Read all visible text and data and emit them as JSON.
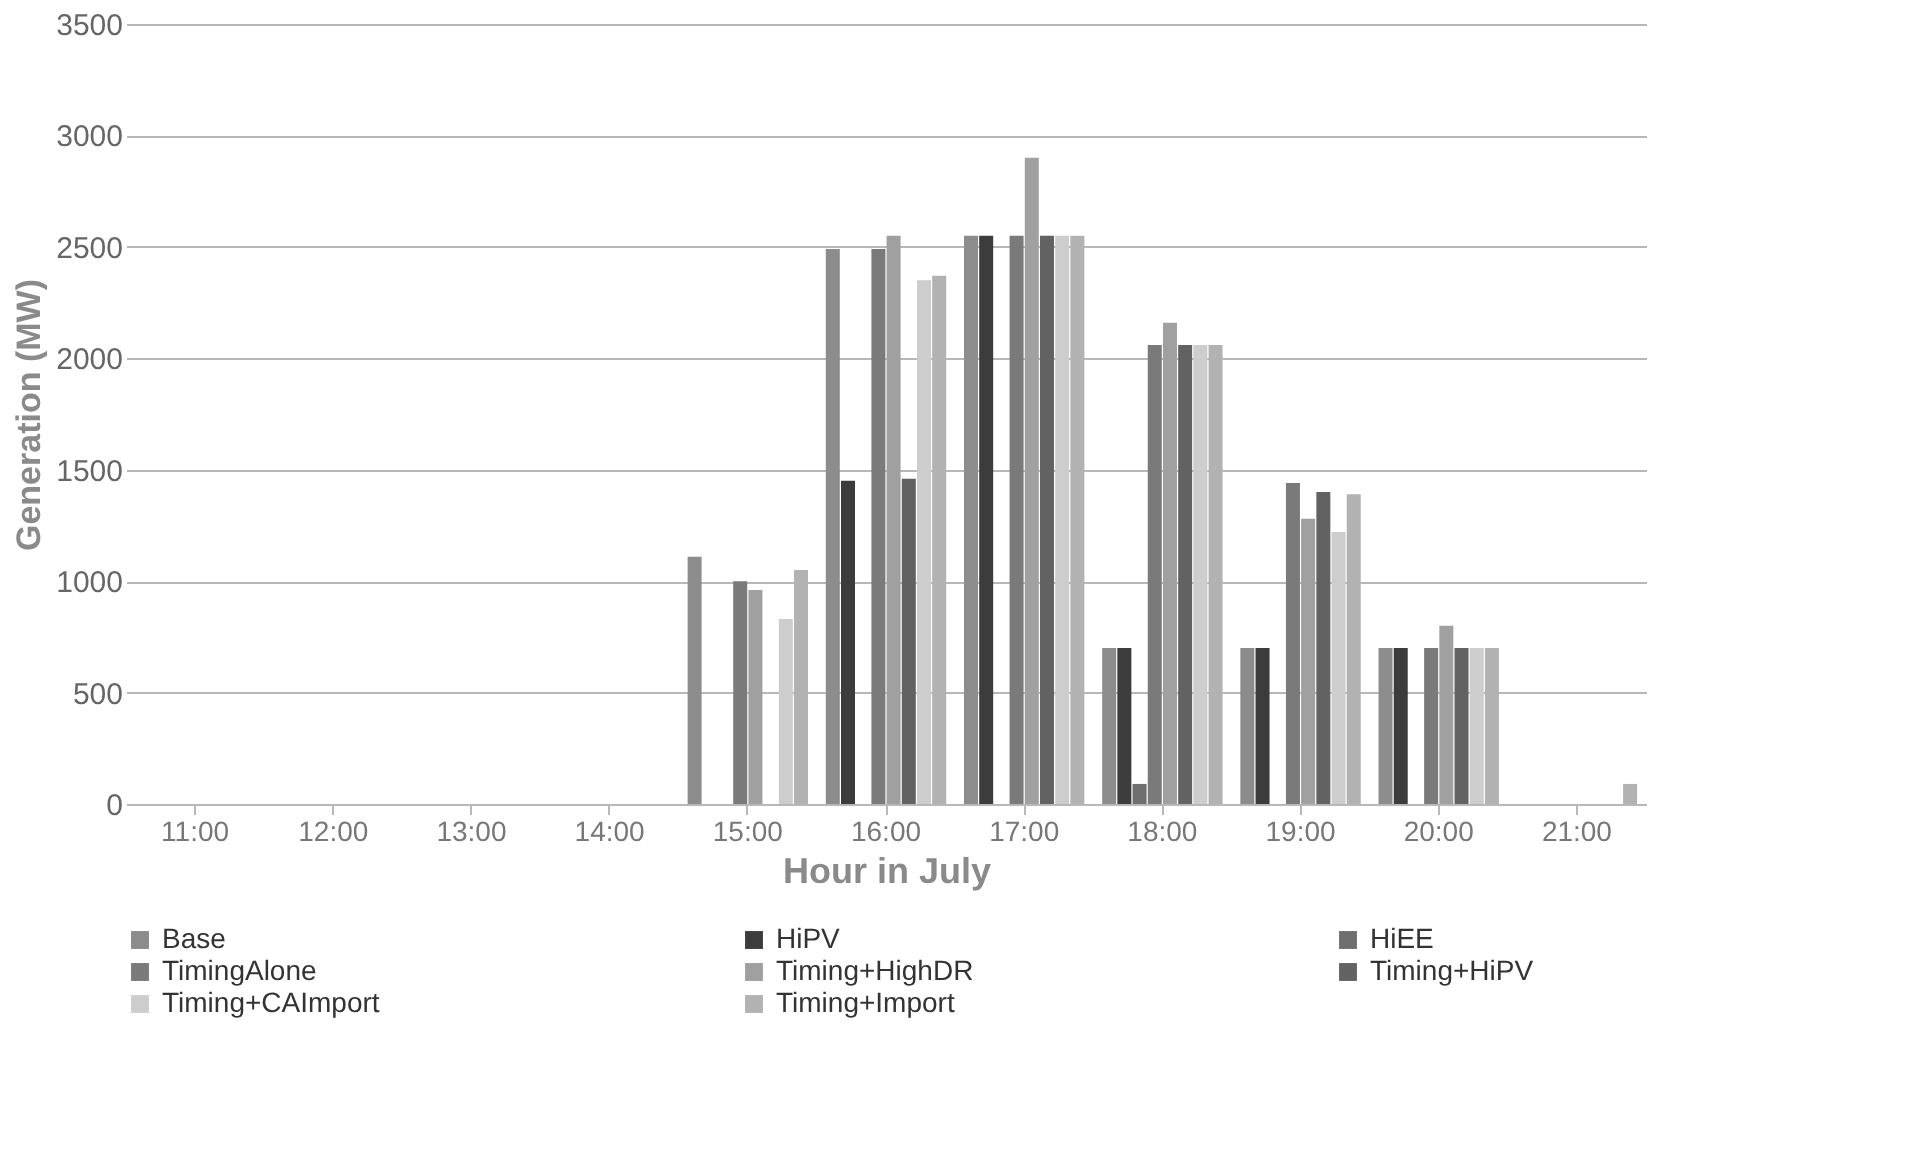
{
  "chart_data": {
    "type": "bar",
    "xlabel": "Hour in July",
    "ylabel": "Generation (MW)",
    "categories": [
      "11:00",
      "12:00",
      "13:00",
      "14:00",
      "15:00",
      "16:00",
      "17:00",
      "18:00",
      "19:00",
      "20:00",
      "21:00"
    ],
    "ylim": [
      0,
      3500
    ],
    "yticks": [
      0,
      500,
      1000,
      1500,
      2000,
      2500,
      3000,
      3500
    ],
    "grid": "y",
    "legend": "bottom",
    "series": [
      {
        "name": "Base",
        "color": "#8c8c8c",
        "values": [
          0,
          0,
          0,
          0,
          1110,
          2490,
          2550,
          700,
          700,
          700,
          0
        ]
      },
      {
        "name": "HiPV",
        "color": "#3c3c3c",
        "values": [
          0,
          0,
          0,
          0,
          0,
          1450,
          2550,
          700,
          700,
          700,
          0
        ]
      },
      {
        "name": "HiEE",
        "color": "#6e6e6e",
        "values": [
          0,
          0,
          0,
          0,
          0,
          0,
          0,
          90,
          0,
          0,
          0
        ]
      },
      {
        "name": "TimingAlone",
        "color": "#7a7a7a",
        "values": [
          0,
          0,
          0,
          0,
          1000,
          2490,
          2550,
          2060,
          1440,
          700,
          0
        ]
      },
      {
        "name": "Timing+HighDR",
        "color": "#a0a0a0",
        "values": [
          0,
          0,
          0,
          0,
          960,
          2550,
          2900,
          2160,
          1280,
          800,
          0
        ]
      },
      {
        "name": "Timing+HiPV",
        "color": "#626262",
        "values": [
          0,
          0,
          0,
          0,
          0,
          1460,
          2550,
          2060,
          1400,
          700,
          0
        ]
      },
      {
        "name": "Timing+CAImport",
        "color": "#cdcdcd",
        "values": [
          0,
          0,
          0,
          0,
          830,
          2350,
          2550,
          2060,
          1220,
          700,
          0
        ]
      },
      {
        "name": "Timing+Import",
        "color": "#b2b2b2",
        "values": [
          0,
          0,
          0,
          0,
          1050,
          2370,
          2550,
          2060,
          1390,
          700,
          90
        ]
      }
    ]
  }
}
